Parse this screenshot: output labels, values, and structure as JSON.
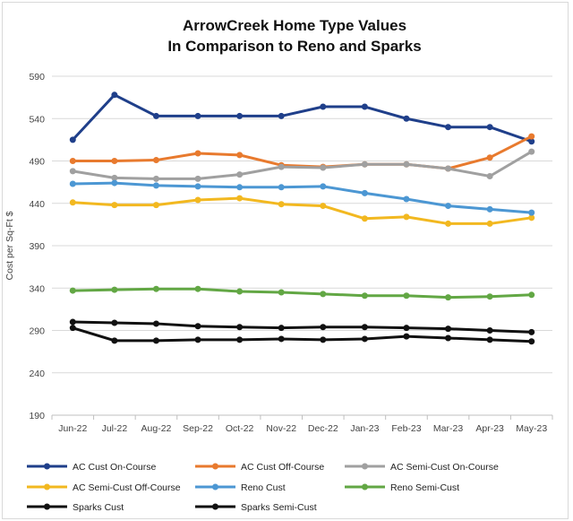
{
  "chart_data": {
    "type": "line",
    "title": [
      "ArrowCreek Home Type Values",
      "In Comparison to Reno and Sparks"
    ],
    "xlabel": "",
    "ylabel": "Cost per Sq-Ft $",
    "ylim": [
      190,
      590
    ],
    "yticks": [
      190,
      240,
      290,
      340,
      390,
      440,
      490,
      540,
      590
    ],
    "grid": true,
    "legend_position": "bottom",
    "categories": [
      "Jun-22",
      "Jul-22",
      "Aug-22",
      "Sep-22",
      "Oct-22",
      "Nov-22",
      "Dec-22",
      "Jan-23",
      "Feb-23",
      "Mar-23",
      "Apr-23",
      "May-23"
    ],
    "series": [
      {
        "name": "AC Cust On-Course",
        "color": "#1F3F8A",
        "values": [
          515,
          568,
          543,
          543,
          543,
          543,
          554,
          554,
          540,
          530,
          530,
          513
        ]
      },
      {
        "name": "AC Cust Off-Course",
        "color": "#E87A2E",
        "values": [
          490,
          490,
          491,
          499,
          497,
          485,
          483,
          486,
          486,
          481,
          494,
          519
        ]
      },
      {
        "name": "AC Semi-Cust On-Course",
        "color": "#A0A0A0",
        "values": [
          478,
          470,
          469,
          469,
          474,
          483,
          482,
          486,
          486,
          481,
          472,
          501
        ]
      },
      {
        "name": "AC Semi-Cust Off-Course",
        "color": "#F2B820",
        "values": [
          441,
          438,
          438,
          444,
          446,
          439,
          437,
          422,
          424,
          416,
          416,
          423
        ]
      },
      {
        "name": "Reno Cust",
        "color": "#4C97D3",
        "values": [
          463,
          464,
          461,
          460,
          459,
          459,
          460,
          452,
          445,
          437,
          433,
          429
        ]
      },
      {
        "name": "Reno Semi-Cust",
        "color": "#62A744",
        "values": [
          337,
          338,
          339,
          339,
          336,
          335,
          333,
          331,
          331,
          329,
          330,
          332
        ]
      },
      {
        "name": "Sparks Cust",
        "color": "#111111",
        "values": [
          300,
          299,
          298,
          295,
          294,
          293,
          294,
          294,
          293,
          292,
          290,
          288
        ]
      },
      {
        "name": "Sparks Semi-Cust",
        "color": "#111111",
        "values": [
          293,
          278,
          278,
          279,
          279,
          280,
          279,
          280,
          283,
          281,
          279,
          277
        ]
      }
    ]
  }
}
